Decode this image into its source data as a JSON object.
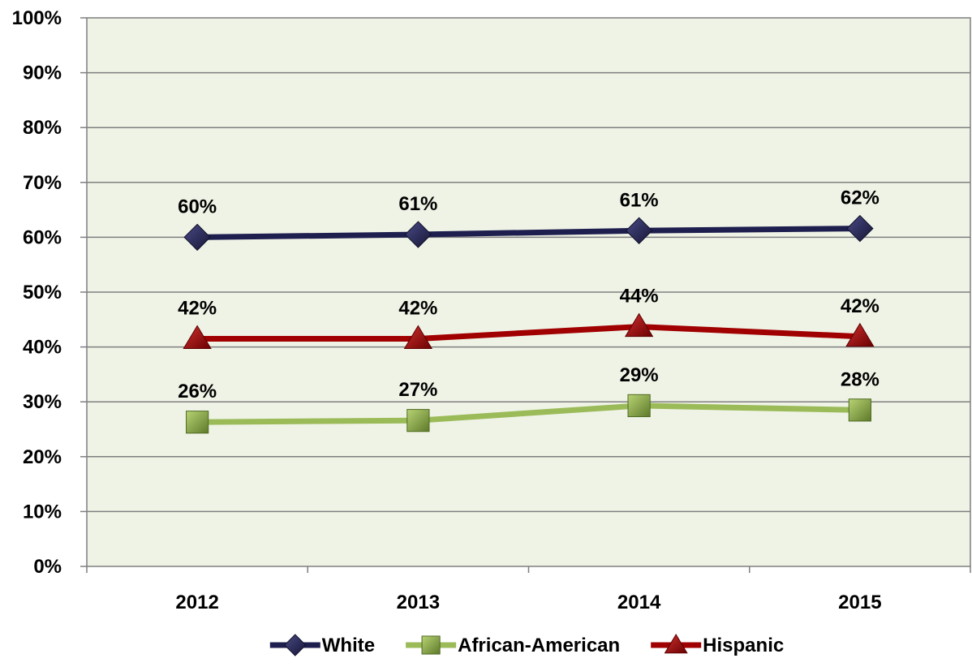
{
  "chart_data": {
    "type": "line",
    "title": "",
    "xlabel": "",
    "ylabel": "",
    "categories": [
      "2012",
      "2013",
      "2014",
      "2015"
    ],
    "ylim": [
      0,
      100
    ],
    "yticks": [
      "0%",
      "10%",
      "20%",
      "30%",
      "40%",
      "50%",
      "60%",
      "70%",
      "80%",
      "90%",
      "100%"
    ],
    "grid": true,
    "legend_position": "bottom",
    "plot_background": "#eff3e6",
    "series": [
      {
        "name": "White",
        "values": [
          60,
          60.5,
          61.2,
          61.6
        ],
        "labels": [
          "60%",
          "61%",
          "61%",
          "62%"
        ],
        "color": "#1f1f4f",
        "marker": "diamond"
      },
      {
        "name": "African-American",
        "values": [
          26.3,
          26.6,
          29.3,
          28.5
        ],
        "labels": [
          "26%",
          "27%",
          "29%",
          "28%"
        ],
        "color": "#9bbb59",
        "marker": "square"
      },
      {
        "name": "Hispanic",
        "values": [
          41.5,
          41.5,
          43.7,
          41.9
        ],
        "labels": [
          "42%",
          "42%",
          "44%",
          "42%"
        ],
        "color": "#a00000",
        "marker": "triangle"
      }
    ]
  }
}
